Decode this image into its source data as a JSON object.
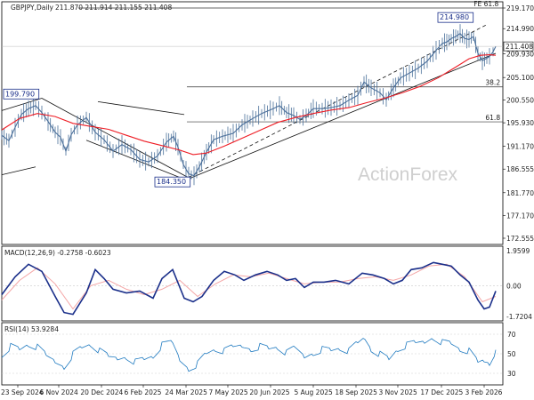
{
  "chart_data": [
    {
      "type": "candlestick",
      "title": "GBPJPY,Daily",
      "ohlc_header": "211.870 211.914 211.155 211.408",
      "last_price": "211.408",
      "ylim": [
        172.555,
        219.17
      ],
      "y_ticks": [
        "219.170",
        "214.990",
        "209.930",
        "205.100",
        "200.550",
        "195.930",
        "191.170",
        "186.555",
        "181.770",
        "177.170",
        "172.555"
      ],
      "price_path": [
        [
          0,
          193.4
        ],
        [
          8,
          192.3
        ],
        [
          15,
          195.0
        ],
        [
          22,
          197.6
        ],
        [
          30,
          198.8
        ],
        [
          38,
          199.4
        ],
        [
          45,
          198.0
        ],
        [
          52,
          196.2
        ],
        [
          60,
          194.0
        ],
        [
          66,
          193.0
        ],
        [
          72,
          190.2
        ],
        [
          78,
          193.5
        ],
        [
          85,
          195.5
        ],
        [
          95,
          197.0
        ],
        [
          105,
          194.0
        ],
        [
          115,
          192.5
        ],
        [
          125,
          190.2
        ],
        [
          135,
          191.5
        ],
        [
          145,
          190.5
        ],
        [
          155,
          188.5
        ],
        [
          165,
          188.0
        ],
        [
          175,
          189.2
        ],
        [
          185,
          192.0
        ],
        [
          193,
          193.2
        ],
        [
          198,
          191.0
        ],
        [
          204,
          187.5
        ],
        [
          210,
          185.6
        ],
        [
          216,
          185.2
        ],
        [
          222,
          187.0
        ],
        [
          230,
          190.0
        ],
        [
          238,
          192.5
        ],
        [
          248,
          193.2
        ],
        [
          260,
          193.8
        ],
        [
          270,
          195.5
        ],
        [
          282,
          196.8
        ],
        [
          292,
          197.8
        ],
        [
          305,
          198.8
        ],
        [
          312,
          199.4
        ],
        [
          320,
          198.0
        ],
        [
          328,
          197.4
        ],
        [
          335,
          196.6
        ],
        [
          342,
          197.4
        ],
        [
          350,
          198.8
        ],
        [
          360,
          198.8
        ],
        [
          370,
          199.0
        ],
        [
          380,
          199.4
        ],
        [
          390,
          200.5
        ],
        [
          400,
          201.5
        ],
        [
          407,
          204.2
        ],
        [
          415,
          203.0
        ],
        [
          425,
          202.0
        ],
        [
          432,
          200.6
        ],
        [
          440,
          203.0
        ],
        [
          448,
          205.0
        ],
        [
          458,
          206.0
        ],
        [
          468,
          207.0
        ],
        [
          478,
          208.4
        ],
        [
          488,
          210.6
        ],
        [
          495,
          212.0
        ],
        [
          500,
          212.3
        ],
        [
          505,
          213.0
        ],
        [
          510,
          213.4
        ],
        [
          515,
          214.0
        ],
        [
          520,
          213.0
        ],
        [
          525,
          212.8
        ],
        [
          530,
          213.4
        ],
        [
          535,
          210.0
        ],
        [
          540,
          208.5
        ],
        [
          545,
          209.0
        ],
        [
          548,
          209.4
        ],
        [
          552,
          210.3
        ],
        [
          555,
          211.4
        ]
      ],
      "ma_path": [
        [
          0,
          194.5
        ],
        [
          20,
          196.8
        ],
        [
          40,
          197.8
        ],
        [
          60,
          197.2
        ],
        [
          80,
          195.8
        ],
        [
          100,
          195.2
        ],
        [
          120,
          194.6
        ],
        [
          140,
          193.4
        ],
        [
          160,
          192.2
        ],
        [
          180,
          191.3
        ],
        [
          200,
          190.4
        ],
        [
          215,
          189.5
        ],
        [
          230,
          189.8
        ],
        [
          250,
          191.2
        ],
        [
          270,
          192.8
        ],
        [
          290,
          194.4
        ],
        [
          310,
          196.0
        ],
        [
          330,
          197.0
        ],
        [
          350,
          197.8
        ],
        [
          370,
          198.5
        ],
        [
          390,
          199.0
        ],
        [
          410,
          200.0
        ],
        [
          430,
          200.9
        ],
        [
          450,
          202.0
        ],
        [
          470,
          203.3
        ],
        [
          490,
          205.0
        ],
        [
          510,
          207.2
        ],
        [
          525,
          208.9
        ],
        [
          538,
          209.6
        ],
        [
          548,
          209.7
        ],
        [
          555,
          209.6
        ]
      ],
      "level_labels": [
        "FE 61.8",
        "38.2",
        "61.8"
      ],
      "levels": [
        219.17,
        203.2,
        196.12
      ],
      "callouts": [
        "214.980",
        "199.790",
        "184.350"
      ],
      "watermark": "ActionForex",
      "colors": {
        "price": "#4a6f9a",
        "ma": "#ee1c24",
        "lines": "#111111",
        "callout_border": "#1a2f8a"
      }
    },
    {
      "type": "line",
      "title": "MACD(12,26,9) -0.2758 -0.6023",
      "y_ticks": [
        "1.9599",
        "0.00",
        "-1.7204"
      ],
      "ylim": [
        -1.7204,
        1.9599
      ],
      "macd_path": [
        [
          0,
          -0.5
        ],
        [
          15,
          0.5
        ],
        [
          30,
          1.2
        ],
        [
          45,
          0.8
        ],
        [
          60,
          -0.6
        ],
        [
          70,
          -1.5
        ],
        [
          80,
          -1.6
        ],
        [
          95,
          -0.4
        ],
        [
          105,
          0.9
        ],
        [
          115,
          0.4
        ],
        [
          125,
          -0.2
        ],
        [
          140,
          -0.4
        ],
        [
          155,
          -0.3
        ],
        [
          170,
          -0.7
        ],
        [
          180,
          0.4
        ],
        [
          192,
          0.9
        ],
        [
          205,
          -0.7
        ],
        [
          215,
          -0.9
        ],
        [
          225,
          -0.6
        ],
        [
          238,
          0.3
        ],
        [
          250,
          0.8
        ],
        [
          262,
          0.6
        ],
        [
          272,
          0.3
        ],
        [
          285,
          0.6
        ],
        [
          298,
          0.8
        ],
        [
          310,
          0.6
        ],
        [
          320,
          0.3
        ],
        [
          330,
          0.4
        ],
        [
          340,
          -0.1
        ],
        [
          350,
          0.2
        ],
        [
          362,
          0.2
        ],
        [
          375,
          0.3
        ],
        [
          390,
          0.1
        ],
        [
          405,
          0.7
        ],
        [
          417,
          0.6
        ],
        [
          430,
          0.4
        ],
        [
          440,
          0.1
        ],
        [
          450,
          0.3
        ],
        [
          460,
          0.9
        ],
        [
          472,
          1.0
        ],
        [
          485,
          1.3
        ],
        [
          495,
          1.2
        ],
        [
          505,
          1.1
        ],
        [
          515,
          0.6
        ],
        [
          525,
          0.2
        ],
        [
          535,
          -0.8
        ],
        [
          542,
          -1.3
        ],
        [
          548,
          -1.2
        ],
        [
          555,
          -0.3
        ]
      ],
      "signal_path": [
        [
          0,
          -0.8
        ],
        [
          20,
          0.3
        ],
        [
          40,
          1.0
        ],
        [
          60,
          0.1
        ],
        [
          80,
          -1.3
        ],
        [
          100,
          0.0
        ],
        [
          120,
          0.3
        ],
        [
          140,
          -0.2
        ],
        [
          160,
          -0.5
        ],
        [
          180,
          -0.2
        ],
        [
          200,
          0.3
        ],
        [
          220,
          -0.6
        ],
        [
          240,
          0.1
        ],
        [
          260,
          0.6
        ],
        [
          280,
          0.5
        ],
        [
          300,
          0.7
        ],
        [
          320,
          0.4
        ],
        [
          340,
          0.1
        ],
        [
          360,
          0.2
        ],
        [
          380,
          0.2
        ],
        [
          400,
          0.4
        ],
        [
          420,
          0.5
        ],
        [
          440,
          0.3
        ],
        [
          460,
          0.6
        ],
        [
          480,
          1.1
        ],
        [
          500,
          1.2
        ],
        [
          520,
          0.5
        ],
        [
          540,
          -0.9
        ],
        [
          555,
          -0.6
        ]
      ],
      "colors": {
        "macd": "#1a2f8a",
        "signal": "#f4a6a6"
      }
    },
    {
      "type": "line",
      "title": "RSI(14) 53.9284",
      "y_ticks": [
        "70",
        "50",
        "30"
      ],
      "ylim": [
        20,
        80
      ],
      "rsi_path": [
        [
          0,
          50
        ],
        [
          10,
          58
        ],
        [
          20,
          54
        ],
        [
          30,
          60
        ],
        [
          40,
          56
        ],
        [
          50,
          47
        ],
        [
          60,
          42
        ],
        [
          70,
          38
        ],
        [
          80,
          50
        ],
        [
          90,
          56
        ],
        [
          100,
          60
        ],
        [
          110,
          52
        ],
        [
          120,
          46
        ],
        [
          130,
          45
        ],
        [
          140,
          48
        ],
        [
          150,
          42
        ],
        [
          160,
          44
        ],
        [
          170,
          48
        ],
        [
          180,
          58
        ],
        [
          192,
          60
        ],
        [
          200,
          44
        ],
        [
          210,
          36
        ],
        [
          220,
          40
        ],
        [
          230,
          50
        ],
        [
          240,
          55
        ],
        [
          250,
          52
        ],
        [
          260,
          56
        ],
        [
          270,
          58
        ],
        [
          280,
          56
        ],
        [
          290,
          58
        ],
        [
          300,
          55
        ],
        [
          310,
          57
        ],
        [
          320,
          50
        ],
        [
          330,
          55
        ],
        [
          340,
          47
        ],
        [
          350,
          52
        ],
        [
          360,
          55
        ],
        [
          370,
          53
        ],
        [
          380,
          56
        ],
        [
          390,
          52
        ],
        [
          400,
          60
        ],
        [
          408,
          66
        ],
        [
          415,
          56
        ],
        [
          425,
          50
        ],
        [
          435,
          44
        ],
        [
          445,
          55
        ],
        [
          455,
          58
        ],
        [
          465,
          60
        ],
        [
          475,
          62
        ],
        [
          485,
          68
        ],
        [
          495,
          62
        ],
        [
          505,
          60
        ],
        [
          515,
          55
        ],
        [
          525,
          52
        ],
        [
          535,
          40
        ],
        [
          542,
          43
        ],
        [
          548,
          42
        ],
        [
          555,
          54
        ]
      ],
      "colors": {
        "rsi": "#1f7ac0"
      }
    }
  ],
  "x_axis_labels": [
    "23 Sep 2024",
    "6 Nov 2024",
    "20 Dec 2024",
    "6 Feb 2025",
    "24 Mar 2025",
    "7 May 2025",
    "20 Jun 2025",
    "5 Aug 2025",
    "18 Sep 2025",
    "3 Nov 2025",
    "17 Dec 2025",
    "3 Feb 2026"
  ]
}
